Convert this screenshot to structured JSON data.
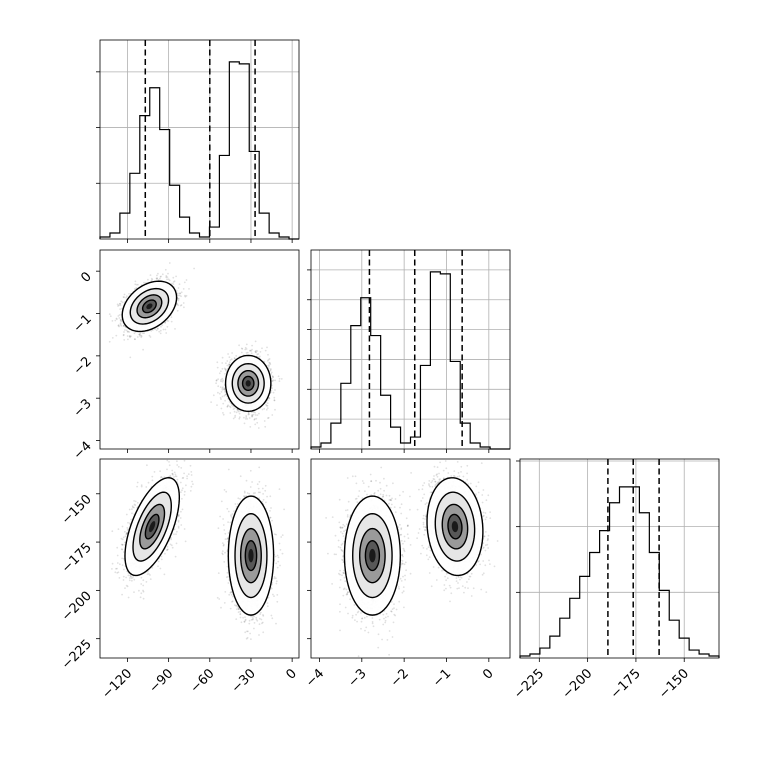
{
  "chart_data": {
    "type": "corner",
    "style": {
      "grid": true,
      "quantiles": [
        0.16,
        0.5,
        0.84
      ],
      "point_color": "#000000",
      "line_color": "#000000"
    },
    "histograms": [
      {
        "name": "hist-param-1",
        "range": [
          -140,
          5
        ],
        "ylim": [
          0,
          1
        ],
        "xticks": [
          -120,
          -90,
          -60,
          -30,
          0
        ],
        "yticks": [
          0.28,
          0.56,
          0.84
        ],
        "quantile_lines": [
          -107,
          -60,
          -27
        ],
        "bins": {
          "start": -140,
          "width": 7.25,
          "counts": [
            0.01,
            0.03,
            0.13,
            0.33,
            0.62,
            0.76,
            0.55,
            0.27,
            0.11,
            0.03,
            0.01,
            0.06,
            0.42,
            0.89,
            0.88,
            0.44,
            0.13,
            0.03,
            0.01,
            0.0
          ]
        }
      },
      {
        "name": "hist-param-2",
        "range": [
          -4.2,
          0.5
        ],
        "ylim": [
          0,
          1
        ],
        "xticks": [
          -4,
          -3,
          -2,
          -1,
          0
        ],
        "yticks": [
          0.15,
          0.3,
          0.45,
          0.6,
          0.75,
          0.9
        ],
        "quantile_lines": [
          -2.82,
          -1.75,
          -0.63
        ],
        "bins": {
          "start": -4.2,
          "width": 0.235,
          "counts": [
            0.01,
            0.03,
            0.13,
            0.33,
            0.62,
            0.76,
            0.57,
            0.27,
            0.11,
            0.03,
            0.06,
            0.42,
            0.89,
            0.88,
            0.44,
            0.13,
            0.03,
            0.01,
            0.0,
            0.0
          ]
        }
      },
      {
        "name": "hist-param-3",
        "range": [
          -235,
          -132
        ],
        "ylim": [
          0,
          1
        ],
        "xticks": [
          -225,
          -200,
          -175,
          -150
        ],
        "yticks": [
          0.33,
          0.66,
          0.99
        ],
        "quantile_lines": [
          -189.5,
          -176.4,
          -163.0
        ],
        "bins": {
          "start": -235,
          "width": 5.15,
          "counts": [
            0.01,
            0.02,
            0.05,
            0.11,
            0.2,
            0.3,
            0.41,
            0.53,
            0.64,
            0.78,
            0.86,
            0.86,
            0.73,
            0.53,
            0.34,
            0.19,
            0.1,
            0.04,
            0.02,
            0.01
          ]
        }
      }
    ],
    "scatter_panels": [
      {
        "name": "panel-p1-vs-p2",
        "x_param": 0,
        "y_param": 1,
        "xlim": [
          -140,
          5
        ],
        "ylim": [
          -4.2,
          0.5
        ],
        "yticks": [
          0,
          -1,
          -2,
          -3,
          -4
        ],
        "clusters": [
          {
            "name": "cluster-a",
            "mean": [
              -104,
              -0.83
            ],
            "sd": [
              9,
              0.27
            ],
            "rho": 0.35,
            "n": 2400
          },
          {
            "name": "cluster-b",
            "mean": [
              -32,
              -2.65
            ],
            "sd": [
              7.5,
              0.3
            ],
            "rho": 0.0,
            "n": 2400
          }
        ]
      },
      {
        "name": "panel-p1-vs-p3",
        "x_param": 0,
        "y_param": 2,
        "xlim": [
          -140,
          5
        ],
        "ylim": [
          -235,
          -132
        ],
        "yticks": [
          -150,
          -175,
          -200,
          -225
        ],
        "clusters": [
          {
            "name": "cluster-a",
            "mean": [
              -102,
              -167
            ],
            "sd": [
              9,
              11.5
            ],
            "rho": 0.6,
            "n": 2400
          },
          {
            "name": "cluster-b",
            "mean": [
              -30,
              -182
            ],
            "sd": [
              7.5,
              14
            ],
            "rho": 0.0,
            "n": 2400
          }
        ]
      },
      {
        "name": "panel-p2-vs-p3",
        "x_param": 1,
        "y_param": 2,
        "xlim": [
          -4.2,
          0.5
        ],
        "ylim": [
          -235,
          -132
        ],
        "clusters": [
          {
            "name": "cluster-a",
            "mean": [
              -2.75,
              -182
            ],
            "sd": [
              0.3,
              14
            ],
            "rho": 0.0,
            "n": 2400
          },
          {
            "name": "cluster-b",
            "mean": [
              -0.8,
              -167
            ],
            "sd": [
              0.3,
              11.5
            ],
            "rho": -0.1,
            "n": 2400
          }
        ]
      }
    ]
  }
}
